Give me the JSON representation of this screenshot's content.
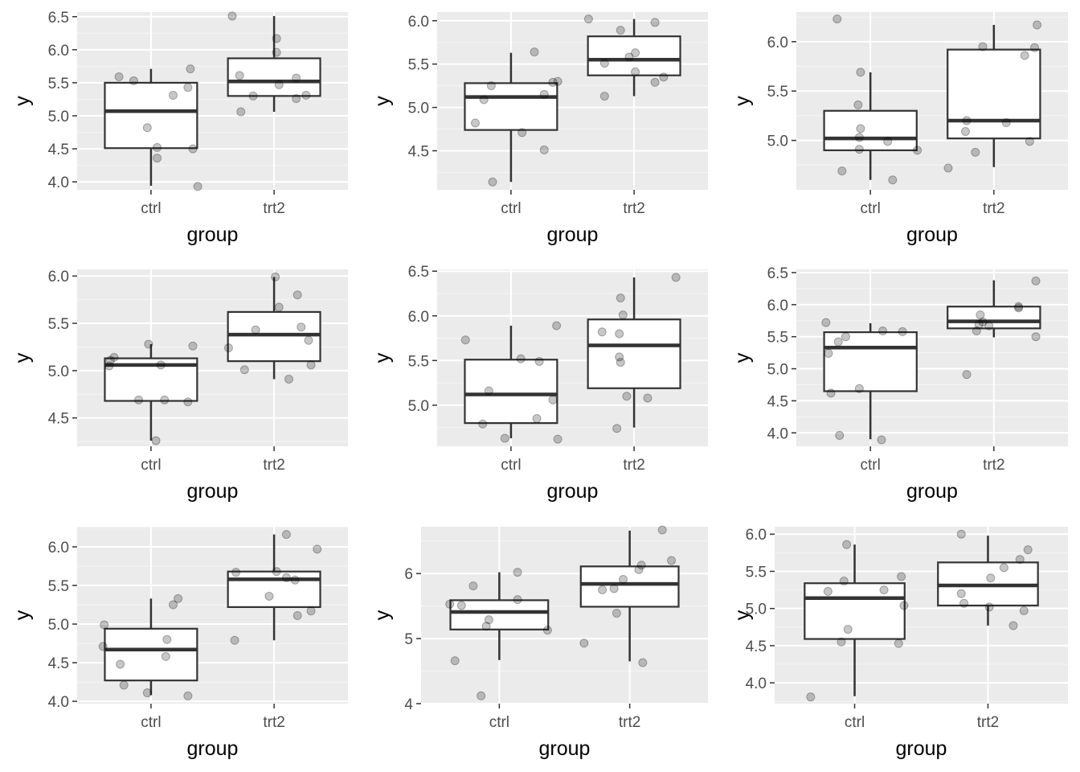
{
  "chart_data": [
    {
      "type": "boxplot",
      "xlabel": "group",
      "ylabel": "y",
      "categories": [
        "ctrl",
        "trt2"
      ],
      "ylim": [
        3.88,
        6.57
      ],
      "yticks": [
        4.0,
        4.5,
        5.0,
        5.5,
        6.0,
        6.5
      ],
      "ytick_labels": [
        "4.0",
        "4.5",
        "5.0",
        "5.5",
        "6.0",
        "6.5"
      ],
      "boxes": [
        {
          "lower": 3.94,
          "q1": 4.51,
          "median": 5.07,
          "q3": 5.5,
          "upper": 5.71
        },
        {
          "lower": 5.06,
          "q1": 5.3,
          "median": 5.52,
          "q3": 5.87,
          "upper": 6.51
        }
      ],
      "points": [
        [
          [
            -0.26,
            5.59
          ],
          [
            -0.14,
            5.53
          ],
          [
            -0.03,
            4.82
          ],
          [
            0.05,
            4.52
          ],
          [
            0.05,
            4.36
          ],
          [
            0.18,
            5.31
          ],
          [
            0.3,
            5.43
          ],
          [
            0.32,
            5.71
          ],
          [
            0.34,
            4.5
          ],
          [
            0.38,
            3.93
          ]
        ],
        [
          [
            -0.34,
            6.51
          ],
          [
            -0.28,
            5.61
          ],
          [
            -0.27,
            5.06
          ],
          [
            -0.17,
            5.3
          ],
          [
            0.02,
            5.96
          ],
          [
            0.02,
            6.17
          ],
          [
            0.04,
            5.47
          ],
          [
            0.18,
            5.57
          ],
          [
            0.18,
            5.26
          ],
          [
            0.26,
            5.31
          ]
        ]
      ]
    },
    {
      "type": "boxplot",
      "xlabel": "group",
      "ylabel": "y",
      "categories": [
        "ctrl",
        "trt2"
      ],
      "ylim": [
        4.05,
        6.1
      ],
      "yticks": [
        4.5,
        5.0,
        5.5,
        6.0
      ],
      "ytick_labels": [
        "4.5",
        "5.0",
        "5.5",
        "6.0"
      ],
      "boxes": [
        {
          "lower": 4.14,
          "q1": 4.74,
          "median": 5.12,
          "q3": 5.28,
          "upper": 5.63
        },
        {
          "lower": 5.13,
          "q1": 5.37,
          "median": 5.55,
          "q3": 5.82,
          "upper": 6.02
        }
      ],
      "points": [
        [
          [
            -0.29,
            4.82
          ],
          [
            -0.22,
            5.09
          ],
          [
            -0.16,
            5.25
          ],
          [
            -0.15,
            4.14
          ],
          [
            0.09,
            4.71
          ],
          [
            0.19,
            5.64
          ],
          [
            0.27,
            5.15
          ],
          [
            0.27,
            4.51
          ],
          [
            0.34,
            5.29
          ],
          [
            0.38,
            5.3
          ]
        ],
        [
          [
            -0.37,
            6.02
          ],
          [
            -0.24,
            5.13
          ],
          [
            -0.24,
            5.51
          ],
          [
            -0.11,
            5.89
          ],
          [
            -0.04,
            5.58
          ],
          [
            0.01,
            5.63
          ],
          [
            0.01,
            5.41
          ],
          [
            0.17,
            5.29
          ],
          [
            0.17,
            5.98
          ],
          [
            0.24,
            5.35
          ]
        ]
      ]
    },
    {
      "type": "boxplot",
      "xlabel": "group",
      "ylabel": "y",
      "categories": [
        "ctrl",
        "trt2"
      ],
      "ylim": [
        4.5,
        6.3
      ],
      "yticks": [
        5.0,
        5.5,
        6.0
      ],
      "ytick_labels": [
        "5.0",
        "5.5",
        "6.0"
      ],
      "boxes": [
        {
          "lower": 4.6,
          "q1": 4.9,
          "median": 5.02,
          "q3": 5.3,
          "upper": 5.69
        },
        {
          "lower": 4.73,
          "q1": 5.02,
          "median": 5.2,
          "q3": 5.92,
          "upper": 6.17
        }
      ],
      "points": [
        [
          [
            -0.27,
            6.23
          ],
          [
            -0.23,
            4.69
          ],
          [
            -0.1,
            5.36
          ],
          [
            -0.09,
            4.91
          ],
          [
            -0.09,
            5.03
          ],
          [
            -0.08,
            5.12
          ],
          [
            -0.08,
            5.69
          ],
          [
            0.14,
            4.99
          ],
          [
            0.18,
            4.6
          ],
          [
            0.38,
            4.9
          ]
        ],
        [
          [
            -0.37,
            4.72
          ],
          [
            -0.23,
            5.09
          ],
          [
            -0.22,
            5.2
          ],
          [
            -0.15,
            4.88
          ],
          [
            -0.09,
            5.95
          ],
          [
            0.1,
            5.18
          ],
          [
            0.25,
            5.86
          ],
          [
            0.29,
            4.99
          ],
          [
            0.33,
            5.94
          ],
          [
            0.35,
            6.17
          ]
        ]
      ]
    },
    {
      "type": "boxplot",
      "xlabel": "group",
      "ylabel": "y",
      "categories": [
        "ctrl",
        "trt2"
      ],
      "ylim": [
        4.2,
        6.07
      ],
      "yticks": [
        4.5,
        5.0,
        5.5,
        6.0
      ],
      "ytick_labels": [
        "4.5",
        "5.0",
        "5.5",
        "6.0"
      ],
      "boxes": [
        {
          "lower": 4.26,
          "q1": 4.68,
          "median": 5.06,
          "q3": 5.13,
          "upper": 5.28
        },
        {
          "lower": 4.91,
          "q1": 5.1,
          "median": 5.38,
          "q3": 5.62,
          "upper": 5.99
        }
      ],
      "points": [
        [
          [
            -0.34,
            5.05
          ],
          [
            -0.33,
            5.11
          ],
          [
            -0.3,
            5.14
          ],
          [
            -0.1,
            4.69
          ],
          [
            -0.02,
            5.28
          ],
          [
            0.04,
            4.26
          ],
          [
            0.08,
            5.06
          ],
          [
            0.11,
            4.69
          ],
          [
            0.3,
            4.67
          ],
          [
            0.34,
            5.26
          ]
        ],
        [
          [
            -0.37,
            5.24
          ],
          [
            -0.24,
            5.01
          ],
          [
            -0.15,
            5.43
          ],
          [
            0.01,
            5.99
          ],
          [
            0.04,
            5.67
          ],
          [
            0.12,
            4.91
          ],
          [
            0.19,
            5.8
          ],
          [
            0.22,
            5.46
          ],
          [
            0.28,
            5.32
          ],
          [
            0.3,
            5.06
          ]
        ]
      ]
    },
    {
      "type": "boxplot",
      "xlabel": "group",
      "ylabel": "y",
      "categories": [
        "ctrl",
        "trt2"
      ],
      "ylim": [
        4.54,
        6.52
      ],
      "yticks": [
        5.0,
        5.5,
        6.0,
        6.5
      ],
      "ytick_labels": [
        "5.0",
        "5.5",
        "6.0",
        "6.5"
      ],
      "boxes": [
        {
          "lower": 4.63,
          "q1": 4.8,
          "median": 5.12,
          "q3": 5.51,
          "upper": 5.89
        },
        {
          "lower": 4.75,
          "q1": 5.19,
          "median": 5.67,
          "q3": 5.96,
          "upper": 6.43
        }
      ],
      "points": [
        [
          [
            -0.37,
            5.73
          ],
          [
            -0.23,
            4.79
          ],
          [
            -0.18,
            5.16
          ],
          [
            -0.05,
            4.63
          ],
          [
            0.08,
            5.52
          ],
          [
            0.21,
            4.85
          ],
          [
            0.23,
            5.49
          ],
          [
            0.34,
            5.06
          ],
          [
            0.37,
            5.89
          ],
          [
            0.38,
            4.62
          ]
        ],
        [
          [
            -0.26,
            5.82
          ],
          [
            -0.14,
            4.74
          ],
          [
            -0.12,
            5.54
          ],
          [
            -0.12,
            5.8
          ],
          [
            -0.11,
            5.48
          ],
          [
            -0.11,
            6.2
          ],
          [
            -0.09,
            6.01
          ],
          [
            -0.06,
            5.1
          ],
          [
            0.11,
            5.08
          ],
          [
            0.34,
            6.43
          ]
        ]
      ]
    },
    {
      "type": "boxplot",
      "xlabel": "group",
      "ylabel": "y",
      "categories": [
        "ctrl",
        "trt2"
      ],
      "ylim": [
        3.79,
        6.55
      ],
      "yticks": [
        4.0,
        4.5,
        5.0,
        5.5,
        6.0,
        6.5
      ],
      "ytick_labels": [
        "4.0",
        "4.5",
        "5.0",
        "5.5",
        "6.0",
        "6.5"
      ],
      "boxes": [
        {
          "lower": 3.9,
          "q1": 4.65,
          "median": 5.33,
          "q3": 5.57,
          "upper": 5.71
        },
        {
          "lower": 5.49,
          "q1": 5.63,
          "median": 5.74,
          "q3": 5.97,
          "upper": 6.38
        }
      ],
      "points": [
        [
          [
            -0.36,
            5.72
          ],
          [
            -0.34,
            5.24
          ],
          [
            -0.32,
            4.62
          ],
          [
            -0.26,
            5.42
          ],
          [
            -0.25,
            3.96
          ],
          [
            -0.2,
            5.5
          ],
          [
            -0.09,
            4.69
          ],
          [
            0.09,
            3.89
          ],
          [
            0.1,
            5.59
          ],
          [
            0.26,
            5.58
          ]
        ],
        [
          [
            -0.22,
            4.91
          ],
          [
            -0.14,
            5.59
          ],
          [
            -0.12,
            5.69
          ],
          [
            -0.11,
            5.84
          ],
          [
            -0.09,
            5.73
          ],
          [
            -0.04,
            5.67
          ],
          [
            0.2,
            5.97
          ],
          [
            0.2,
            5.95
          ],
          [
            0.34,
            6.37
          ],
          [
            0.34,
            5.5
          ]
        ]
      ]
    },
    {
      "type": "boxplot",
      "xlabel": "group",
      "ylabel": "y",
      "categories": [
        "ctrl",
        "trt2"
      ],
      "ylim": [
        3.97,
        6.26
      ],
      "yticks": [
        4.0,
        4.5,
        5.0,
        5.5,
        6.0
      ],
      "ytick_labels": [
        "4.0",
        "4.5",
        "5.0",
        "5.5",
        "6.0"
      ],
      "boxes": [
        {
          "lower": 4.08,
          "q1": 4.27,
          "median": 4.67,
          "q3": 4.94,
          "upper": 5.33
        },
        {
          "lower": 4.79,
          "q1": 5.22,
          "median": 5.58,
          "q3": 5.68,
          "upper": 6.16
        }
      ],
      "points": [
        [
          [
            -0.39,
            4.71
          ],
          [
            -0.38,
            4.99
          ],
          [
            -0.25,
            4.48
          ],
          [
            -0.22,
            4.21
          ],
          [
            -0.03,
            4.11
          ],
          [
            0.12,
            4.58
          ],
          [
            0.13,
            4.8
          ],
          [
            0.18,
            5.25
          ],
          [
            0.22,
            5.33
          ],
          [
            0.3,
            4.07
          ]
        ],
        [
          [
            -0.32,
            4.79
          ],
          [
            -0.31,
            5.67
          ],
          [
            -0.04,
            5.36
          ],
          [
            0.02,
            5.68
          ],
          [
            0.1,
            6.16
          ],
          [
            0.1,
            5.6
          ],
          [
            0.17,
            5.57
          ],
          [
            0.19,
            5.11
          ],
          [
            0.3,
            5.17
          ],
          [
            0.35,
            5.97
          ]
        ]
      ]
    },
    {
      "type": "boxplot",
      "xlabel": "group",
      "ylabel": "y",
      "categories": [
        "ctrl",
        "trt2"
      ],
      "ylim": [
        4.0,
        6.72
      ],
      "yticks": [
        4,
        5,
        6
      ],
      "ytick_labels": [
        "4",
        "5",
        "6"
      ],
      "boxes": [
        {
          "lower": 4.67,
          "q1": 5.14,
          "median": 5.41,
          "q3": 5.59,
          "upper": 6.02
        },
        {
          "lower": 4.65,
          "q1": 5.49,
          "median": 5.84,
          "q3": 6.11,
          "upper": 6.66
        }
      ],
      "points": [
        [
          [
            -0.38,
            5.53
          ],
          [
            -0.34,
            4.66
          ],
          [
            -0.29,
            5.51
          ],
          [
            -0.2,
            5.81
          ],
          [
            -0.14,
            4.12
          ],
          [
            -0.1,
            5.19
          ],
          [
            -0.08,
            5.29
          ],
          [
            0.14,
            6.02
          ],
          [
            0.14,
            5.6
          ],
          [
            0.37,
            5.13
          ]
        ],
        [
          [
            -0.35,
            4.93
          ],
          [
            -0.21,
            5.75
          ],
          [
            -0.12,
            5.77
          ],
          [
            -0.1,
            5.39
          ],
          [
            -0.05,
            5.91
          ],
          [
            0.07,
            6.06
          ],
          [
            0.09,
            6.13
          ],
          [
            0.1,
            4.63
          ],
          [
            0.25,
            6.67
          ],
          [
            0.32,
            6.2
          ]
        ]
      ]
    },
    {
      "type": "boxplot",
      "xlabel": "group",
      "ylabel": "y",
      "categories": [
        "ctrl",
        "trt2"
      ],
      "ylim": [
        3.72,
        6.1
      ],
      "yticks": [
        4.0,
        4.5,
        5.0,
        5.5,
        6.0
      ],
      "ytick_labels": [
        "4.0",
        "4.5",
        "5.0",
        "5.5",
        "6.0"
      ],
      "boxes": [
        {
          "lower": 3.82,
          "q1": 4.59,
          "median": 5.14,
          "q3": 5.34,
          "upper": 5.86
        },
        {
          "lower": 4.77,
          "q1": 5.04,
          "median": 5.31,
          "q3": 5.62,
          "upper": 5.98
        }
      ],
      "points": [
        [
          [
            -0.33,
            3.81
          ],
          [
            -0.2,
            5.23
          ],
          [
            -0.1,
            4.55
          ],
          [
            -0.08,
            5.37
          ],
          [
            -0.06,
            5.86
          ],
          [
            -0.05,
            4.72
          ],
          [
            0.22,
            5.25
          ],
          [
            0.33,
            4.53
          ],
          [
            0.35,
            5.43
          ],
          [
            0.37,
            5.04
          ]
        ],
        [
          [
            -0.2,
            6.0
          ],
          [
            -0.2,
            5.2
          ],
          [
            -0.18,
            5.07
          ],
          [
            0.01,
            5.02
          ],
          [
            0.02,
            5.41
          ],
          [
            0.12,
            5.55
          ],
          [
            0.19,
            4.77
          ],
          [
            0.24,
            5.66
          ],
          [
            0.27,
            4.97
          ],
          [
            0.3,
            5.79
          ]
        ]
      ]
    }
  ]
}
